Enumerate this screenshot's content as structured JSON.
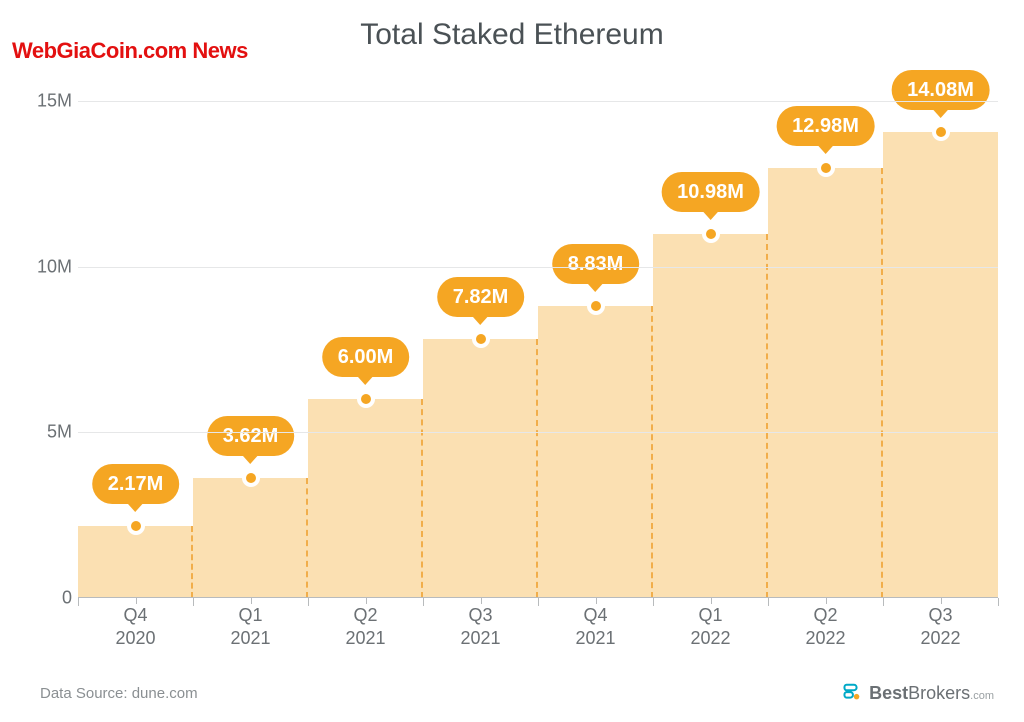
{
  "title": "Total Staked Ethereum",
  "watermark": "WebGiaCoin.com News",
  "watermark_color": "#e31010",
  "chart": {
    "type": "bar",
    "background_color": "#ffffff",
    "grid_color": "#e6e7e8",
    "axis_text_color": "#6b7074",
    "axis_fontsize": 18,
    "bar_fill_color": "#fbe0b2",
    "divider_color": "#f0a63a",
    "bubble_bg_color": "#f5a623",
    "bubble_text_color": "#ffffff",
    "bubble_fontsize": 20,
    "dot_fill_color": "#f5a623",
    "dot_border_color": "#ffffff",
    "ylim": [
      0,
      16
    ],
    "yticks": [
      0,
      5,
      10,
      15
    ],
    "ytick_labels": [
      "0",
      "5M",
      "10M",
      "15M"
    ],
    "categories": [
      {
        "q": "Q4",
        "y": "2020"
      },
      {
        "q": "Q1",
        "y": "2021"
      },
      {
        "q": "Q2",
        "y": "2021"
      },
      {
        "q": "Q3",
        "y": "2021"
      },
      {
        "q": "Q4",
        "y": "2021"
      },
      {
        "q": "Q1",
        "y": "2022"
      },
      {
        "q": "Q2",
        "y": "2022"
      },
      {
        "q": "Q3",
        "y": "2022"
      }
    ],
    "values": [
      2.17,
      3.62,
      6.0,
      7.82,
      8.83,
      10.98,
      12.98,
      14.08
    ],
    "value_labels": [
      "2.17M",
      "3.62M",
      "6.00M",
      "7.82M",
      "8.83M",
      "10.98M",
      "12.98M",
      "14.08M"
    ]
  },
  "footer": {
    "source_text": "Data Source: dune.com",
    "brand_name_bold": "Best",
    "brand_name_rest": "Brokers",
    "brand_tld": ".com",
    "brand_icon_color": "#00a9c7"
  }
}
